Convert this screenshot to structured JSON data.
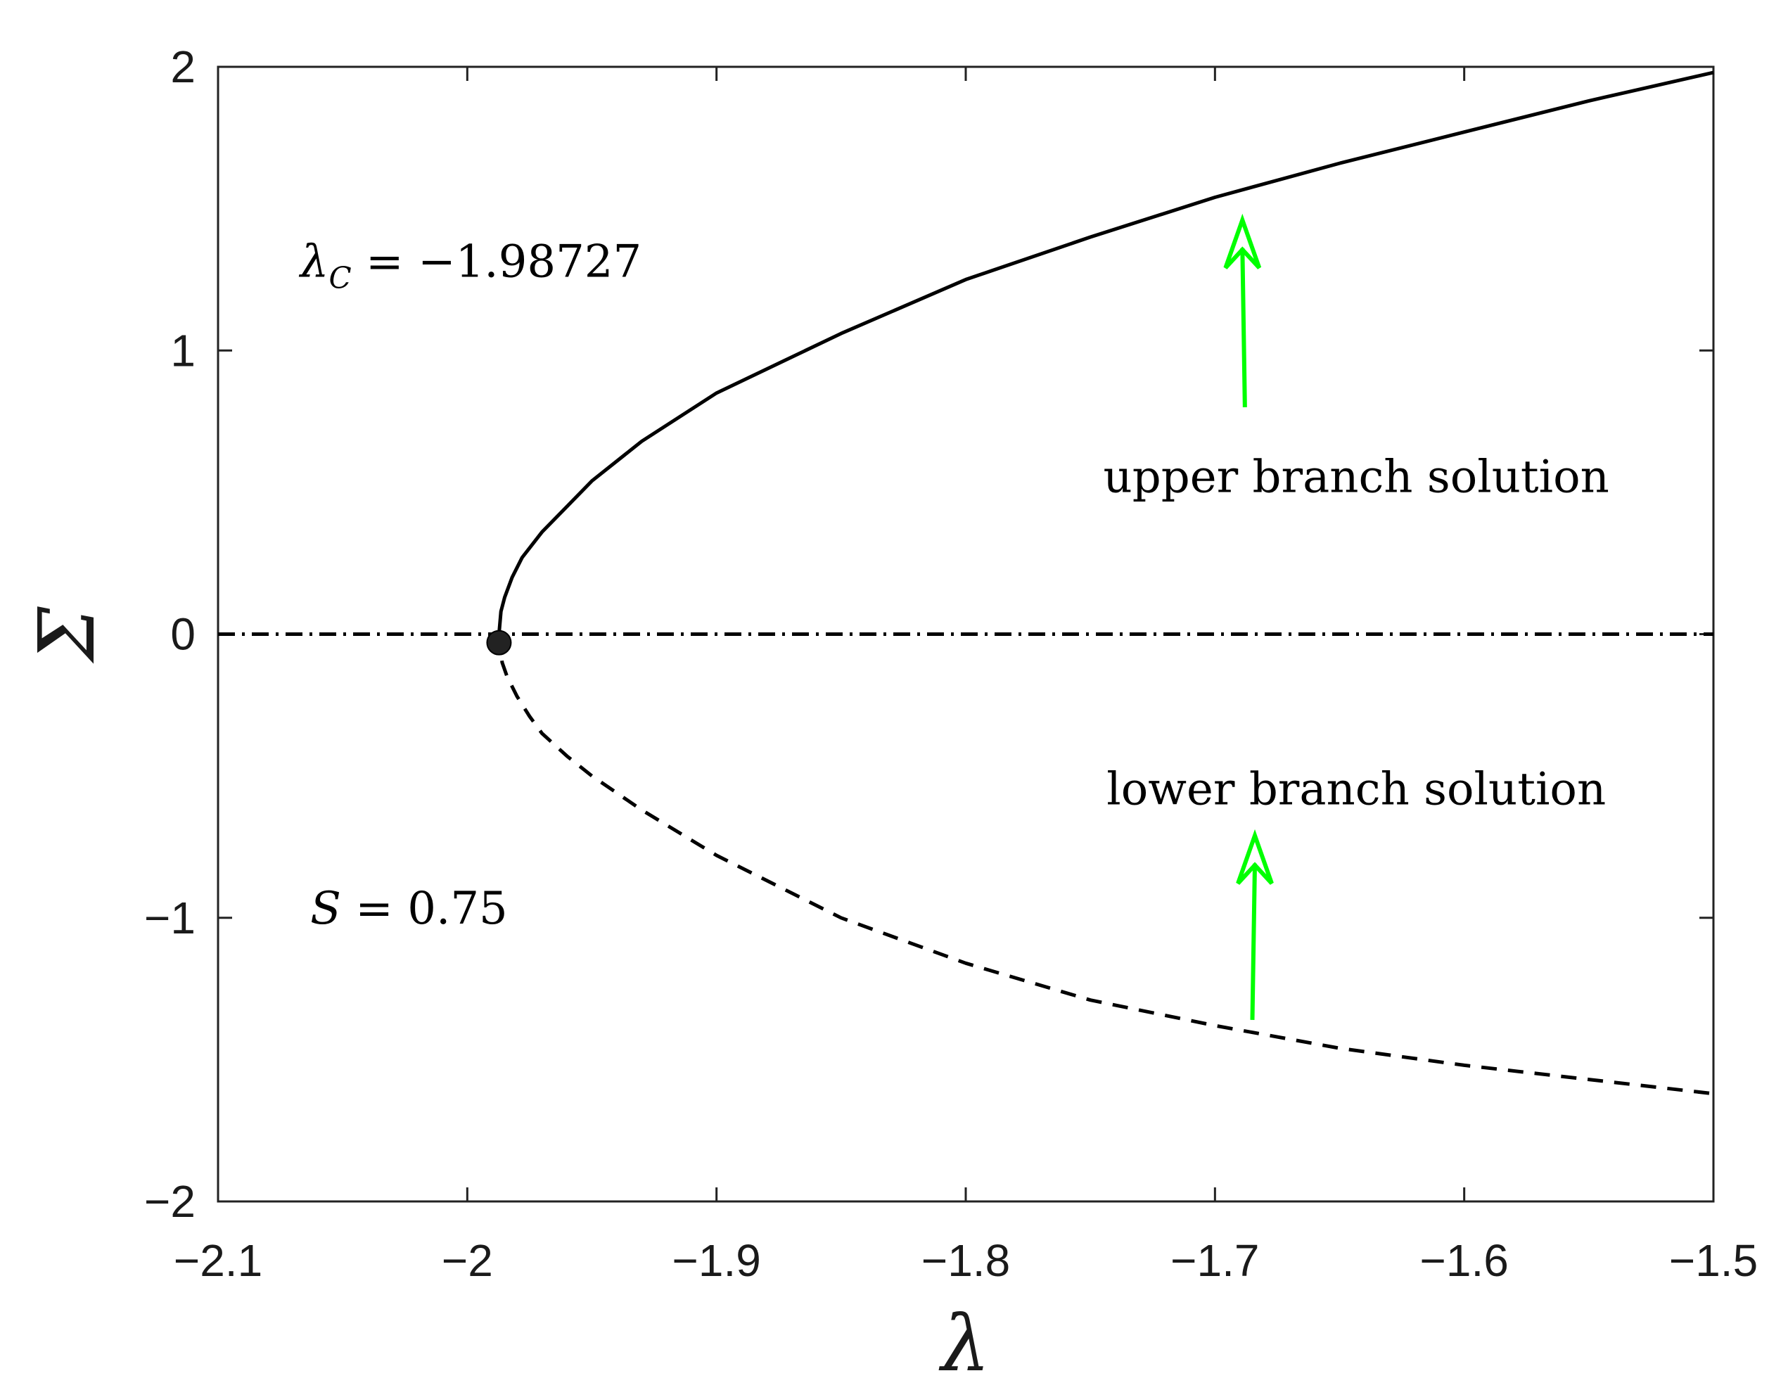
{
  "chart_data": {
    "type": "line",
    "xlabel": "λ",
    "ylabel": "Σ",
    "xlim": [
      -2.1,
      -1.5
    ],
    "ylim": [
      -2,
      2
    ],
    "xticks": [
      -2.1,
      -2,
      -1.9,
      -1.8,
      -1.7,
      -1.6,
      -1.5
    ],
    "xtick_labels": [
      "−2.1",
      "−2",
      "−1.9",
      "−1.8",
      "−1.7",
      "−1.6",
      "−1.5"
    ],
    "yticks": [
      -2,
      -1,
      0,
      1,
      2
    ],
    "ytick_labels": [
      "−2",
      "−1",
      "0",
      "1",
      "2"
    ],
    "grid": false,
    "series": [
      {
        "name": "upper branch solution",
        "style": "solid",
        "color": "#000000",
        "x": [
          -1.98727,
          -1.9865,
          -1.985,
          -1.982,
          -1.978,
          -1.97,
          -1.96,
          -1.95,
          -1.93,
          -1.9,
          -1.85,
          -1.8,
          -1.75,
          -1.7,
          -1.65,
          -1.6,
          -1.55,
          -1.5
        ],
        "y": [
          0.0,
          0.08,
          0.13,
          0.2,
          0.27,
          0.36,
          0.45,
          0.54,
          0.68,
          0.85,
          1.06,
          1.25,
          1.4,
          1.54,
          1.66,
          1.77,
          1.88,
          1.98
        ]
      },
      {
        "name": "lower branch solution",
        "style": "dashed",
        "color": "#000000",
        "x": [
          -1.98727,
          -1.986,
          -1.984,
          -1.98,
          -1.975,
          -1.97,
          -1.96,
          -1.95,
          -1.93,
          -1.9,
          -1.85,
          -1.8,
          -1.75,
          -1.7,
          -1.65,
          -1.6,
          -1.55,
          -1.5
        ],
        "y": [
          0.0,
          -0.1,
          -0.15,
          -0.22,
          -0.29,
          -0.35,
          -0.43,
          -0.5,
          -0.62,
          -0.78,
          -1.0,
          -1.16,
          -1.29,
          -1.38,
          -1.46,
          -1.52,
          -1.57,
          -1.62
        ]
      },
      {
        "name": "",
        "style": "dashdot",
        "color": "#000000",
        "x": [
          -2.1,
          -1.5
        ],
        "y": [
          0,
          0
        ]
      }
    ],
    "critical_point": {
      "x": -1.98727,
      "y": -0.03
    },
    "annotations": [
      {
        "text": "upper branch solution",
        "x": -1.68,
        "y": 0.55
      },
      {
        "text": "lower branch solution",
        "x": -1.68,
        "y": -0.55
      }
    ],
    "arrows": [
      {
        "from": [
          -1.688,
          0.8
        ],
        "to": [
          -1.689,
          1.45
        ],
        "color": "#00ff00"
      },
      {
        "from": [
          -1.685,
          -1.36
        ],
        "to": [
          -1.684,
          -0.72
        ],
        "color": "#00ff00"
      }
    ],
    "math_labels": [
      {
        "text_main": "λ",
        "text_sub": "C",
        "text_rest": " = −1.98727",
        "x": -2.067,
        "y": 1.26
      },
      {
        "text_main": "S",
        "text_sub": "",
        "text_rest": " = 0.75",
        "x": -2.063,
        "y": -1.02
      }
    ]
  }
}
